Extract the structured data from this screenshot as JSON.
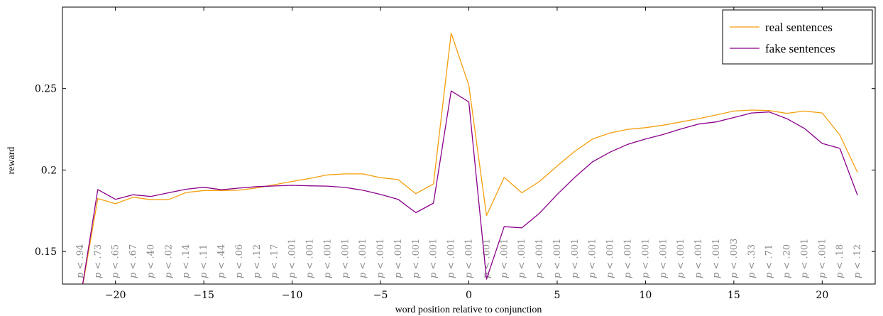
{
  "chart_data": {
    "type": "line",
    "xlabel": "word position relative to conjunction",
    "ylabel": "reward",
    "xlim": [
      -23,
      23
    ],
    "ylim": [
      0.13,
      0.3
    ],
    "xticks": [
      -20,
      -15,
      -10,
      -5,
      0,
      5,
      10,
      15,
      20
    ],
    "xtick_labels": [
      "−20",
      "−15",
      "−10",
      "−5",
      "0",
      "5",
      "10",
      "15",
      "20"
    ],
    "yticks": [
      0.15,
      0.2,
      0.25
    ],
    "ytick_labels": [
      "0.15",
      "0.2",
      "0.25"
    ],
    "legend_position": "top-right",
    "grid": false,
    "x": [
      -22,
      -21,
      -20,
      -19,
      -18,
      -17,
      -16,
      -15,
      -14,
      -13,
      -12,
      -11,
      -10,
      -9,
      -8,
      -7,
      -6,
      -5,
      -4,
      -3,
      -2,
      -1,
      0,
      1,
      2,
      3,
      4,
      5,
      6,
      7,
      8,
      9,
      10,
      11,
      12,
      13,
      14,
      15,
      16,
      17,
      18,
      19,
      20,
      21,
      22
    ],
    "series": [
      {
        "name": "real sentences",
        "color": "#f59e0b",
        "values": [
          0.12,
          0.1825,
          0.1793,
          0.1833,
          0.1818,
          0.1818,
          0.1862,
          0.1874,
          0.1874,
          0.1876,
          0.189,
          0.191,
          0.193,
          0.1948,
          0.197,
          0.1976,
          0.1976,
          0.1953,
          0.1941,
          0.1855,
          0.1915,
          0.284,
          0.252,
          0.172,
          0.1955,
          0.186,
          0.193,
          0.2025,
          0.2115,
          0.219,
          0.2227,
          0.225,
          0.226,
          0.2275,
          0.2295,
          0.2315,
          0.2338,
          0.2362,
          0.2368,
          0.2365,
          0.2348,
          0.2362,
          0.235,
          0.2215,
          0.1985
        ]
      },
      {
        "name": "fake sentences",
        "color": "#8b008b",
        "values": [
          0.12,
          0.188,
          0.182,
          0.1848,
          0.1838,
          0.186,
          0.1882,
          0.1894,
          0.1879,
          0.1889,
          0.1898,
          0.1902,
          0.1906,
          0.1903,
          0.1901,
          0.1893,
          0.1876,
          0.185,
          0.182,
          0.1738,
          0.1797,
          0.2485,
          0.2418,
          0.133,
          0.1652,
          0.1645,
          0.1735,
          0.185,
          0.1955,
          0.205,
          0.211,
          0.2158,
          0.219,
          0.2218,
          0.2252,
          0.2282,
          0.2295,
          0.2322,
          0.235,
          0.2356,
          0.2315,
          0.2255,
          0.2163,
          0.2133,
          0.1845
        ]
      }
    ],
    "pvalue_labels": [
      ".94",
      ".73",
      ".65",
      ".67",
      ".40",
      ".02",
      ".14",
      ".11",
      ".44",
      ".06",
      ".12",
      ".17",
      ".001",
      ".001",
      ".001",
      ".001",
      ".001",
      ".001",
      ".001",
      ".001",
      ".001",
      ".001",
      ".001",
      ".001",
      ".001",
      ".001",
      ".001",
      ".001",
      ".001",
      ".001",
      ".001",
      ".001",
      ".001",
      ".001",
      ".001",
      ".001",
      ".001",
      ".003",
      ".33",
      ".71",
      ".20",
      ".001",
      ".001",
      ".18",
      ".12"
    ],
    "pvalue_prefix": "p",
    "pvalue_relation": "<"
  }
}
